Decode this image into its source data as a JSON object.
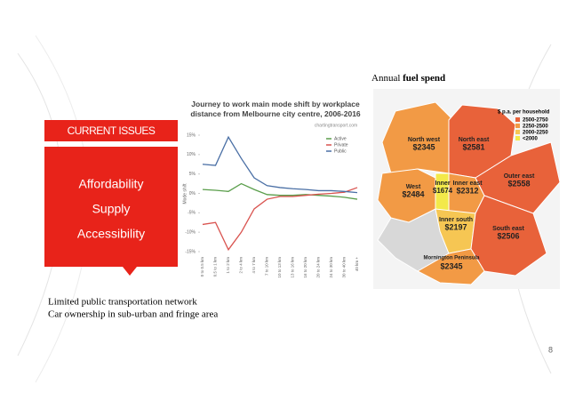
{
  "slide": {
    "issues_header": "CURRENT ISSUES",
    "issues": [
      "Affordability",
      "Supply",
      "Accessibility"
    ],
    "notes": [
      "Limited public transportation network",
      "Car ownership in sub-urban and fringe area"
    ],
    "page_number": "8"
  },
  "map": {
    "title_prefix": "Annual",
    "title_bold": "fuel spend",
    "legend_title": "$ p.a. per household",
    "legend": [
      "2500-2750",
      "2250-2500",
      "2000-2250",
      "<2000"
    ],
    "regions": [
      {
        "name": "North west",
        "value": "$2345"
      },
      {
        "name": "North east",
        "value": "$2581"
      },
      {
        "name": "West",
        "value": "$2484"
      },
      {
        "name": "Inner",
        "value": "$1674"
      },
      {
        "name": "Inner east",
        "value": "$2312"
      },
      {
        "name": "Outer east",
        "value": "$2558"
      },
      {
        "name": "Inner south",
        "value": "$2197"
      },
      {
        "name": "South east",
        "value": "$2506"
      },
      {
        "name": "Mornington Peninsula",
        "value": "$2345"
      }
    ]
  },
  "chart_data": {
    "type": "line",
    "title": "Journey to work main mode shift by workplace distance from Melbourne city centre, 2006-2016",
    "source": "chartingtransport.com",
    "y_label": "Mode shift",
    "categories": [
      "0 to 0.5 km",
      "0.5 to 1 km",
      "1 to 2 km",
      "2 to 4 km",
      "4 to 7 km",
      "7 to 10 km",
      "10 to 13 km",
      "13 to 16 km",
      "16 to 20 km",
      "20 to 24 km",
      "24 to 30 km",
      "30 to 40 km",
      "40 km +"
    ],
    "series": [
      {
        "name": "Active",
        "color": "#5a9e4b",
        "values": [
          1,
          0.8,
          0.5,
          2.5,
          1,
          -0.3,
          -0.5,
          -0.5,
          -0.3,
          -0.5,
          -0.7,
          -1,
          -1.5
        ]
      },
      {
        "name": "Private",
        "color": "#d9534f",
        "values": [
          -8,
          -7.5,
          -14.5,
          -10,
          -4,
          -1.5,
          -0.8,
          -0.8,
          -0.5,
          -0.2,
          0,
          0.3,
          1.5
        ]
      },
      {
        "name": "Public",
        "color": "#4a6fa5",
        "values": [
          7.5,
          7.2,
          14.5,
          9,
          4,
          2,
          1.5,
          1.2,
          1,
          0.7,
          0.7,
          0.5,
          0.2
        ]
      }
    ],
    "ylim": [
      -15,
      15
    ],
    "yticks": [
      {
        "value": 15,
        "label": "15%"
      },
      {
        "value": 10,
        "label": "10%"
      },
      {
        "value": 5,
        "label": "5%"
      },
      {
        "value": 0,
        "label": "0%"
      },
      {
        "value": -5,
        "label": "-5%"
      },
      {
        "value": -10,
        "label": "-10%"
      },
      {
        "value": -15,
        "label": "-15%"
      }
    ]
  }
}
